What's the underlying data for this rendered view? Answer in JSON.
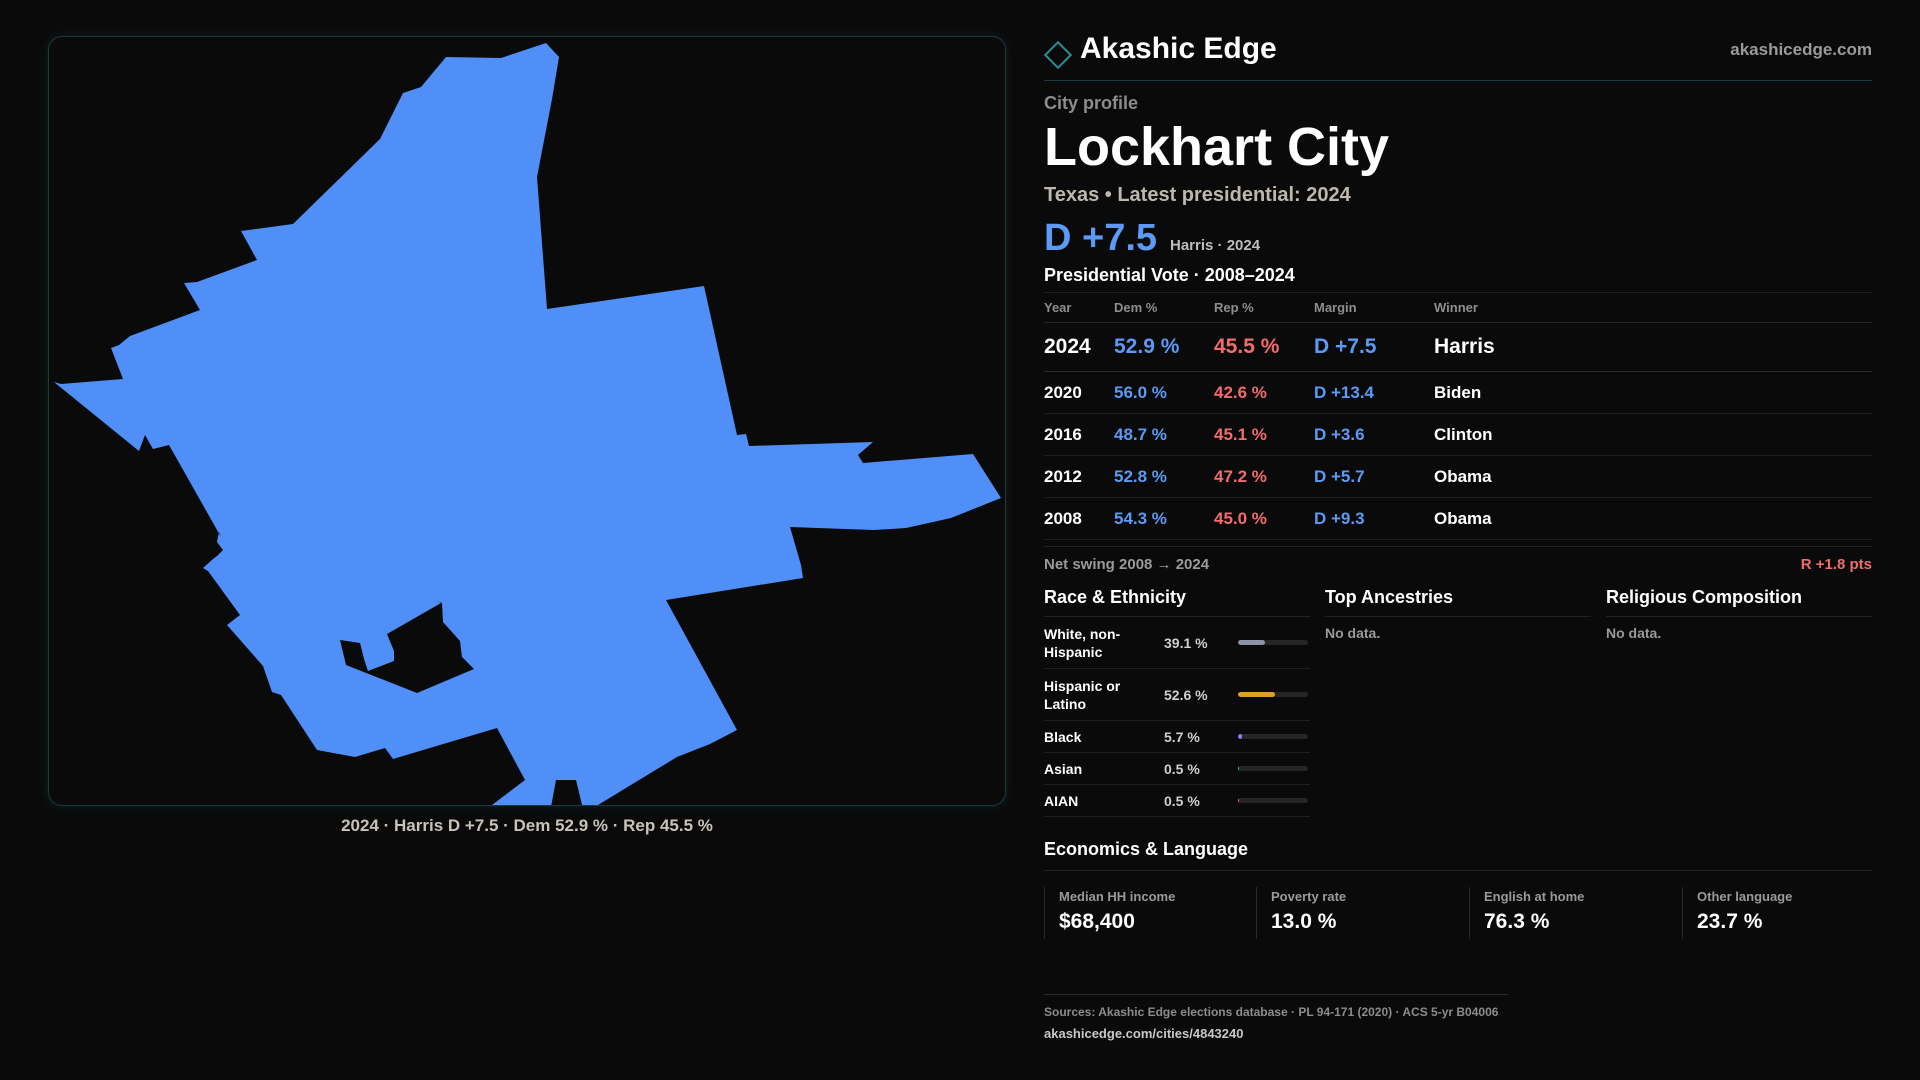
{
  "brand": {
    "name": "Akashic Edge",
    "url": "akashicedge.com",
    "accent_color": "#2a8e93",
    "logo_icon": "diamond-outline-icon"
  },
  "map": {
    "fill_color": "#4f8ff7",
    "caption": "2024 · Harris D +7.5 · Dem 52.9 % · Rep 45.5 %"
  },
  "profile": {
    "kicker": "City profile",
    "city": "Lockhart City",
    "subtitle": "Texas • Latest presidential: 2024",
    "margin": "D +7.5",
    "margin_note": "Harris · 2024"
  },
  "presidential": {
    "title": "Presidential Vote · 2008–2024",
    "headers": [
      "Year",
      "Dem %",
      "Rep %",
      "Margin",
      "Winner"
    ],
    "rows": [
      {
        "year": "2024",
        "dem": "52.9 %",
        "rep": "45.5 %",
        "margin": "D +7.5",
        "winner": "Harris"
      },
      {
        "year": "2020",
        "dem": "56.0 %",
        "rep": "42.6 %",
        "margin": "D +13.4",
        "winner": "Biden"
      },
      {
        "year": "2016",
        "dem": "48.7 %",
        "rep": "45.1 %",
        "margin": "D +3.6",
        "winner": "Clinton"
      },
      {
        "year": "2012",
        "dem": "52.8 %",
        "rep": "47.2 %",
        "margin": "D +5.7",
        "winner": "Obama"
      },
      {
        "year": "2008",
        "dem": "54.3 %",
        "rep": "45.0 %",
        "margin": "D +9.3",
        "winner": "Obama"
      }
    ],
    "dem_color": "#5b9bf5",
    "rep_color": "#f26c6c"
  },
  "swing": {
    "label": "Net swing 2008 → 2024",
    "value": "R +1.8 pts"
  },
  "race": {
    "title": "Race & Ethnicity",
    "items": [
      {
        "label": "White, non-Hispanic",
        "pct": "39.1 %",
        "share": 0.391,
        "color": "#8a94a6"
      },
      {
        "label": "Hispanic or Latino",
        "pct": "52.6 %",
        "share": 0.526,
        "color": "#e0a020"
      },
      {
        "label": "Black",
        "pct": "5.7 %",
        "share": 0.057,
        "color": "#8b7cf0"
      },
      {
        "label": "Asian",
        "pct": "0.5 %",
        "share": 0.005,
        "color": "#3fb6c4"
      },
      {
        "label": "AIAN",
        "pct": "0.5 %",
        "share": 0.005,
        "color": "#e8704a"
      }
    ]
  },
  "ancestries": {
    "title": "Top Ancestries",
    "empty": "No data."
  },
  "religion": {
    "title": "Religious Composition",
    "empty": "No data."
  },
  "economics": {
    "title": "Economics & Language",
    "stats": [
      {
        "label": "Median HH income",
        "value": "$68,400"
      },
      {
        "label": "Poverty rate",
        "value": "13.0 %"
      },
      {
        "label": "English at home",
        "value": "76.3 %"
      },
      {
        "label": "Other language",
        "value": "23.7 %"
      }
    ]
  },
  "sources": {
    "text": "Sources: Akashic Edge elections database · PL 94-171 (2020) · ACS 5-yr B04006",
    "url": "akashicedge.com/cities/4843240"
  }
}
